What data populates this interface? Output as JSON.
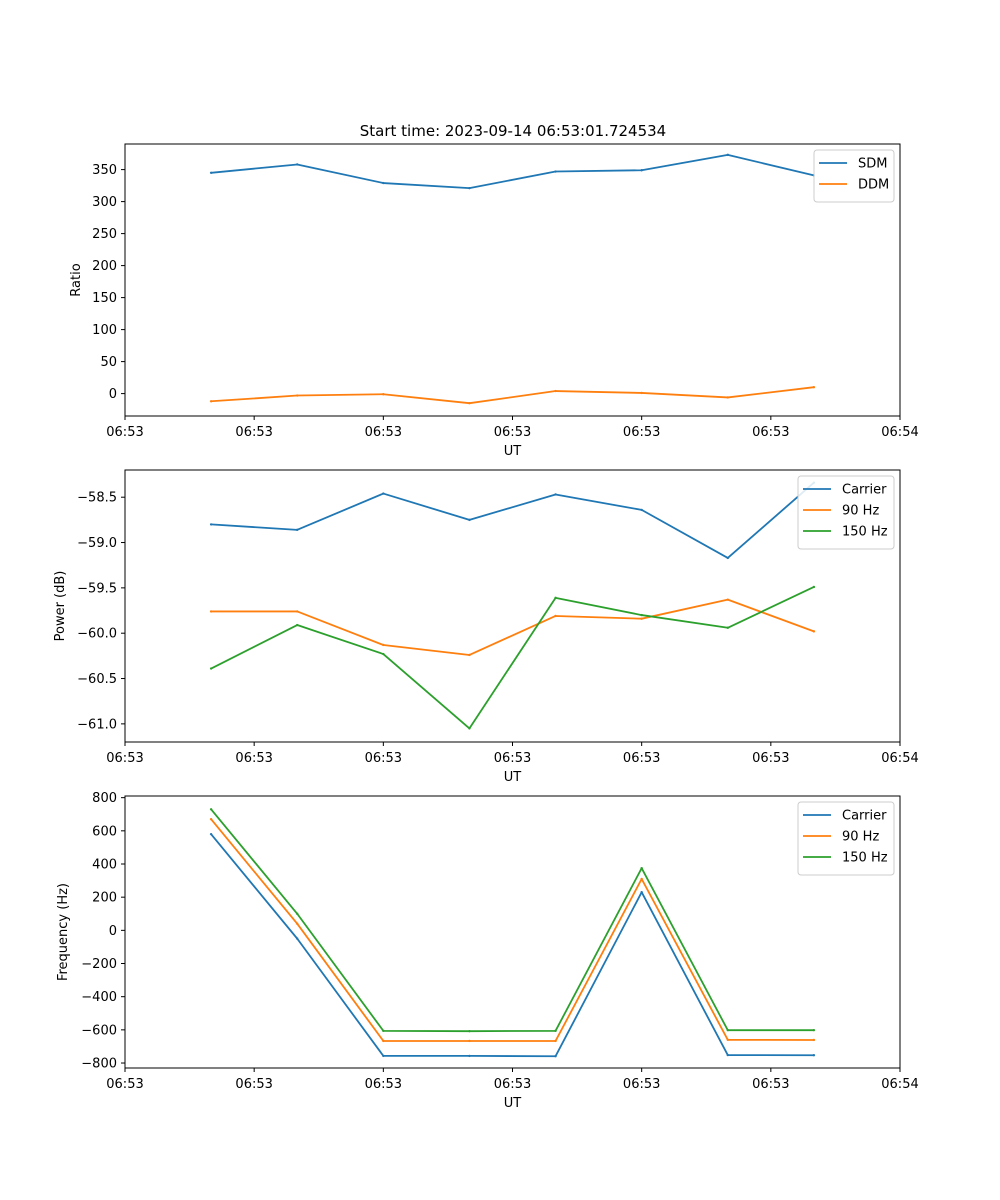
{
  "figure_title": "Start time: 2023-09-14 06:53:01.724534",
  "colors": {
    "blue": "#1f77b4",
    "orange": "#ff7f0e",
    "green": "#2ca02c"
  },
  "chart_data": [
    {
      "type": "line",
      "title": "Start time: 2023-09-14 06:53:01.724534",
      "xlabel": "UT",
      "ylabel": "Ratio",
      "x": [
        1,
        2,
        3,
        4,
        5,
        6,
        7,
        8
      ],
      "xlim": [
        0,
        9
      ],
      "x_ticks": [
        0,
        1.5,
        3,
        4.5,
        6,
        7.5,
        9
      ],
      "x_tick_labels": [
        "06:53",
        "06:53",
        "06:53",
        "06:53",
        "06:53",
        "06:53",
        "06:54"
      ],
      "ylim": [
        -35,
        390
      ],
      "y_ticks": [
        0,
        50,
        100,
        150,
        200,
        250,
        300,
        350
      ],
      "legend": "top-right",
      "series": [
        {
          "name": "SDM",
          "color": "#1f77b4",
          "values": [
            345,
            358,
            329,
            321,
            347,
            349,
            373,
            341
          ]
        },
        {
          "name": "DDM",
          "color": "#ff7f0e",
          "values": [
            -12,
            -3,
            -1,
            -15,
            4,
            1,
            -6,
            10
          ]
        }
      ]
    },
    {
      "type": "line",
      "title": "",
      "xlabel": "UT",
      "ylabel": "Power (dB)",
      "x": [
        1,
        2,
        3,
        4,
        5,
        6,
        7,
        8
      ],
      "xlim": [
        0,
        9
      ],
      "x_ticks": [
        0,
        1.5,
        3,
        4.5,
        6,
        7.5,
        9
      ],
      "x_tick_labels": [
        "06:53",
        "06:53",
        "06:53",
        "06:53",
        "06:53",
        "06:53",
        "06:54"
      ],
      "ylim": [
        -61.2,
        -58.2
      ],
      "y_ticks": [
        -61.0,
        -60.5,
        -60.0,
        -59.5,
        -59.0,
        -58.5
      ],
      "y_tick_labels": [
        "−61.0",
        "−60.5",
        "−60.0",
        "−59.5",
        "−59.0",
        "−58.5"
      ],
      "legend": "top-right",
      "series": [
        {
          "name": "Carrier",
          "color": "#1f77b4",
          "values": [
            -58.8,
            -58.86,
            -58.46,
            -58.75,
            -58.47,
            -58.64,
            -59.17,
            -58.34
          ]
        },
        {
          "name": "90 Hz",
          "color": "#ff7f0e",
          "values": [
            -59.76,
            -59.76,
            -60.13,
            -60.24,
            -59.81,
            -59.84,
            -59.63,
            -59.98
          ]
        },
        {
          "name": "150 Hz",
          "color": "#2ca02c",
          "values": [
            -60.39,
            -59.91,
            -60.23,
            -61.05,
            -59.61,
            -59.8,
            -59.94,
            -59.49
          ]
        }
      ]
    },
    {
      "type": "line",
      "title": "",
      "xlabel": "UT",
      "ylabel": "Frequency (Hz)",
      "x": [
        1,
        2,
        3,
        4,
        5,
        6,
        7,
        8
      ],
      "xlim": [
        0,
        9
      ],
      "x_ticks": [
        0,
        1.5,
        3,
        4.5,
        6,
        7.5,
        9
      ],
      "x_tick_labels": [
        "06:53",
        "06:53",
        "06:53",
        "06:53",
        "06:53",
        "06:53",
        "06:54"
      ],
      "ylim": [
        -830,
        810
      ],
      "y_ticks": [
        -800,
        -600,
        -400,
        -200,
        0,
        200,
        400,
        600,
        800
      ],
      "y_tick_labels": [
        "−800",
        "−600",
        "−400",
        "−200",
        "0",
        "200",
        "400",
        "600",
        "800"
      ],
      "legend": "top-right",
      "series": [
        {
          "name": "Carrier",
          "color": "#1f77b4",
          "values": [
            580,
            -50,
            -757,
            -757,
            -759,
            230,
            -752,
            -753
          ]
        },
        {
          "name": "90 Hz",
          "color": "#ff7f0e",
          "values": [
            670,
            40,
            -667,
            -667,
            -667,
            310,
            -660,
            -661
          ]
        },
        {
          "name": "150 Hz",
          "color": "#2ca02c",
          "values": [
            730,
            100,
            -606,
            -608,
            -606,
            375,
            -602,
            -602
          ]
        }
      ]
    }
  ]
}
